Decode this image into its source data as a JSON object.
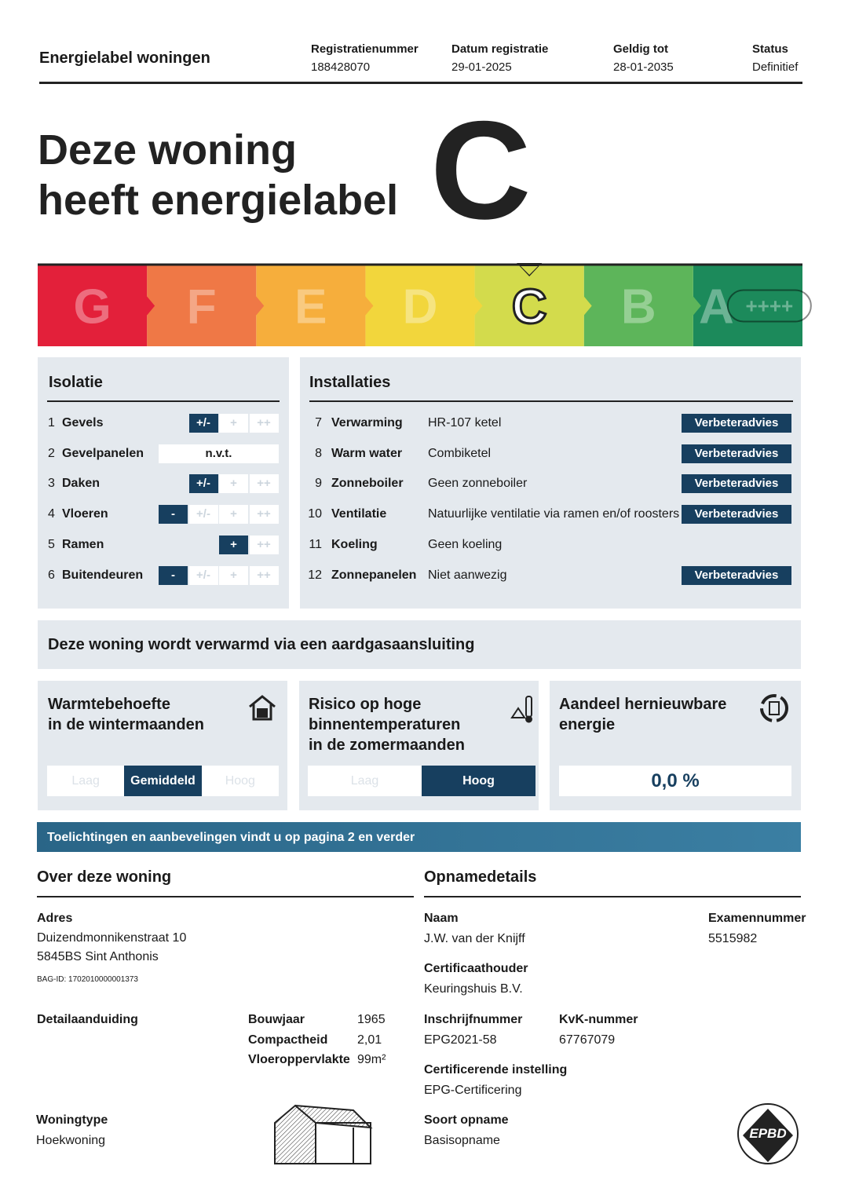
{
  "header": {
    "title": "Energielabel woningen",
    "fields": [
      {
        "label": "Registratienummer",
        "value": "188428070"
      },
      {
        "label": "Datum registratie",
        "value": "29-01-2025"
      },
      {
        "label": "Geldig tot",
        "value": "28-01-2035"
      },
      {
        "label": "Status",
        "value": "Definitief"
      }
    ]
  },
  "hero": {
    "line1": "Deze woning",
    "line2": "heeft energielabel",
    "label": "C"
  },
  "scale": {
    "letters": [
      "G",
      "F",
      "E",
      "D",
      "C",
      "B",
      "A"
    ],
    "extra": "++++"
  },
  "isolatie": {
    "title": "Isolatie",
    "scale_labels": [
      "-",
      "+/-",
      "+",
      "++"
    ],
    "items": [
      {
        "num": "1",
        "name": "Gevels",
        "level": 1
      },
      {
        "num": "2",
        "name": "Gevelpanelen",
        "rating": "n.v.t."
      },
      {
        "num": "3",
        "name": "Daken",
        "level": 1
      },
      {
        "num": "4",
        "name": "Vloeren",
        "level": 0
      },
      {
        "num": "5",
        "name": "Ramen",
        "level": 2
      },
      {
        "num": "6",
        "name": "Buitendeuren",
        "level": 0
      }
    ]
  },
  "installaties": {
    "title": "Installaties",
    "advice_label": "Verbeteradvies",
    "items": [
      {
        "num": "7",
        "name": "Verwarming",
        "value": "HR-107 ketel",
        "advice": true
      },
      {
        "num": "8",
        "name": "Warm water",
        "value": "Combiketel",
        "advice": true
      },
      {
        "num": "9",
        "name": "Zonneboiler",
        "value": "Geen zonneboiler",
        "advice": true
      },
      {
        "num": "10",
        "name": "Ventilatie",
        "value": "Natuurlijke ventilatie via ramen en/of roosters",
        "advice": true
      },
      {
        "num": "11",
        "name": "Koeling",
        "value": "Geen koeling",
        "advice": false
      },
      {
        "num": "12",
        "name": "Zonnepanelen",
        "value": "Niet aanwezig",
        "advice": true
      }
    ]
  },
  "banner": "Deze woning wordt verwarmd via een aardgasaansluiting",
  "cards": [
    {
      "title": [
        "Warmtebehoefte",
        "in de wintermaanden"
      ],
      "options": [
        "Laag",
        "Gemiddeld",
        "Hoog"
      ],
      "selected": 1
    },
    {
      "title": [
        "Risico op hoge",
        "binnentemperaturen",
        "in de zomermaanden"
      ],
      "options": [
        "Laag",
        "Hoog"
      ],
      "selected": 1
    },
    {
      "title": [
        "Aandeel hernieuwbare",
        "energie"
      ],
      "value": "0,0 %"
    }
  ],
  "note": "Toelichtingen en aanbevelingen vindt u op pagina 2 en verder",
  "over": {
    "title": "Over deze woning",
    "address_label": "Adres",
    "address": [
      "Duizendmonnikenstraat 10",
      "5845BS Sint Anthonis"
    ],
    "bag": "BAG-ID: 1702010000001373",
    "detail_label": "Detailaanduiding",
    "details": [
      {
        "label": "Bouwjaar",
        "value": "1965"
      },
      {
        "label": "Compactheid",
        "value": "2,01"
      },
      {
        "label": "Vloeroppervlakte",
        "value": "99m²"
      }
    ],
    "type_label": "Woningtype",
    "type": "Hoekwoning"
  },
  "opname": {
    "title": "Opnamedetails",
    "fields": [
      {
        "label": "Naam",
        "value": "J.W. van der Knijff"
      },
      {
        "label": "Examennummer",
        "value": "5515982"
      },
      {
        "label": "Certificaathouder",
        "value": "Keuringshuis B.V."
      },
      {
        "label": "Inschrijfnummer",
        "value": "EPG2021-58"
      },
      {
        "label": "KvK-nummer",
        "value": "67767079"
      },
      {
        "label": "Certificerende instelling",
        "value": "EPG-Certificering"
      },
      {
        "label": "Soort opname",
        "value": "Basisopname"
      }
    ],
    "logo": "EPBD"
  }
}
